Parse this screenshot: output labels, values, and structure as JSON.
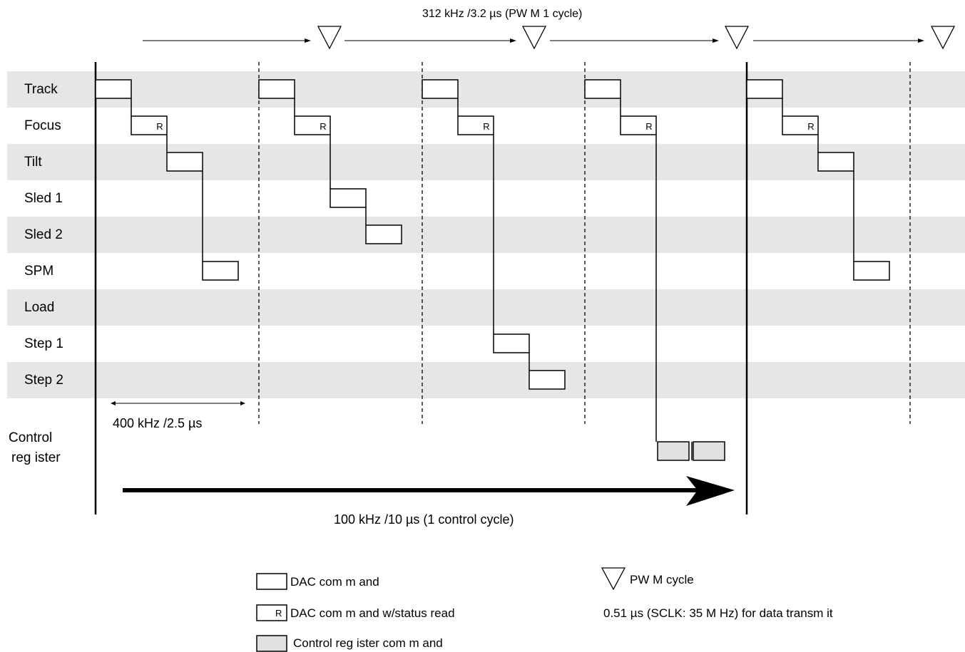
{
  "top_caption": "312 kHz /3.2 µs (PW M 1 cycle)",
  "rows": [
    {
      "label": "Track"
    },
    {
      "label": "Focus"
    },
    {
      "label": "Tilt"
    },
    {
      "label": "Sled 1"
    },
    {
      "label": "Sled 2"
    },
    {
      "label": "SPM"
    },
    {
      "label": "Load"
    },
    {
      "label": "Step 1"
    },
    {
      "label": "Step 2"
    }
  ],
  "control_register_label": [
    "Control",
    "reg ister"
  ],
  "slot_caption": "400 kHz /2.5 µs",
  "cycle_caption": "100 kHz /10 µs (1 control cycle)",
  "r_marker": "R",
  "legend": {
    "dac": "DAC com m and",
    "dac_status": "DAC com m and w/status read",
    "control": "Control reg ister com m and",
    "pwm": "PW M cycle",
    "sclk_note": "0.51 µs (SCLK: 35 M Hz) for data transm it"
  },
  "colors": {
    "band": "#e6e6e6",
    "control_fill": "#e0e0e0",
    "line": "#000000"
  }
}
